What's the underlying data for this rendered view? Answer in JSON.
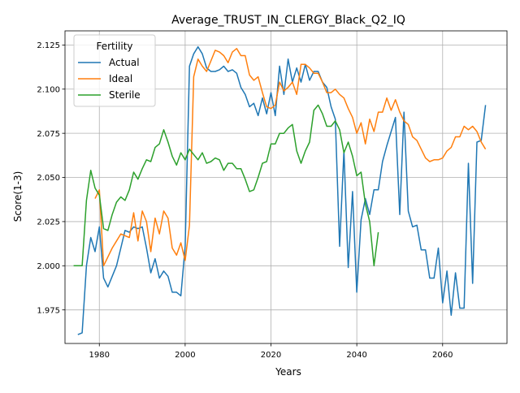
{
  "chart_data": {
    "type": "line",
    "title": "Average_TRUST_IN_CLERGY_Black_Q2_IQ",
    "xlabel": "Years",
    "ylabel": "Score(1-3)",
    "xlim": [
      1972,
      2075
    ],
    "ylim": [
      1.956,
      2.133
    ],
    "xticks": [
      1980,
      2000,
      2020,
      2040,
      2060
    ],
    "yticks": [
      1.975,
      2.0,
      2.025,
      2.05,
      2.075,
      2.1,
      2.125
    ],
    "grid": true,
    "legend": {
      "title": "Fertility",
      "placement": "upper-left"
    },
    "series": [
      {
        "name": "Actual",
        "color": "#1f77b4",
        "x": [
          1975,
          1976,
          1977,
          1978,
          1979,
          1980,
          1981,
          1982,
          1983,
          1984,
          1985,
          1986,
          1987,
          1988,
          1989,
          1990,
          1991,
          1992,
          1993,
          1994,
          1995,
          1996,
          1997,
          1998,
          1999,
          2000,
          2001,
          2002,
          2003,
          2004,
          2005,
          2006,
          2007,
          2008,
          2009,
          2010,
          2011,
          2012,
          2013,
          2014,
          2015,
          2016,
          2017,
          2018,
          2019,
          2020,
          2021,
          2022,
          2023,
          2024,
          2025,
          2026,
          2027,
          2028,
          2029,
          2030,
          2031,
          2032,
          2033,
          2034,
          2035,
          2036,
          2037,
          2038,
          2039,
          2040,
          2041,
          2042,
          2043,
          2044,
          2045,
          2046,
          2047,
          2048,
          2049,
          2050,
          2051,
          2052,
          2053,
          2054,
          2055,
          2056,
          2057,
          2058,
          2059,
          2060,
          2061,
          2062,
          2063,
          2064,
          2065,
          2066,
          2067,
          2068,
          2069,
          2070
        ],
        "y": [
          1.961,
          1.962,
          2.0,
          2.016,
          2.008,
          2.022,
          1.993,
          1.988,
          1.994,
          2.0,
          2.01,
          2.02,
          2.019,
          2.022,
          2.021,
          2.022,
          2.01,
          1.996,
          2.004,
          1.993,
          1.997,
          1.994,
          1.985,
          1.985,
          1.983,
          2.011,
          2.113,
          2.12,
          2.124,
          2.12,
          2.112,
          2.11,
          2.11,
          2.111,
          2.113,
          2.11,
          2.111,
          2.109,
          2.101,
          2.097,
          2.09,
          2.092,
          2.085,
          2.095,
          2.086,
          2.098,
          2.085,
          2.113,
          2.097,
          2.117,
          2.104,
          2.112,
          2.104,
          2.114,
          2.105,
          2.11,
          2.11,
          2.104,
          2.101,
          2.09,
          2.083,
          2.011,
          2.065,
          1.999,
          2.042,
          1.985,
          2.026,
          2.038,
          2.029,
          2.043,
          2.043,
          2.059,
          2.068,
          2.076,
          2.084,
          2.029,
          2.087,
          2.031,
          2.022,
          2.023,
          2.009,
          2.009,
          1.993,
          1.993,
          2.01,
          1.979,
          1.997,
          1.972,
          1.996,
          1.976,
          1.976,
          2.058,
          1.99,
          2.07,
          2.071,
          2.091
        ]
      },
      {
        "name": "Ideal",
        "color": "#ff7f0e",
        "x": [
          1979,
          1980,
          1981,
          1982,
          1983,
          1984,
          1985,
          1986,
          1987,
          1988,
          1989,
          1990,
          1991,
          1992,
          1993,
          1994,
          1995,
          1996,
          1997,
          1998,
          1999,
          2000,
          2001,
          2002,
          2003,
          2004,
          2005,
          2006,
          2007,
          2008,
          2009,
          2010,
          2011,
          2012,
          2013,
          2014,
          2015,
          2016,
          2017,
          2018,
          2019,
          2020,
          2021,
          2022,
          2023,
          2024,
          2025,
          2026,
          2027,
          2028,
          2029,
          2030,
          2031,
          2032,
          2033,
          2034,
          2035,
          2036,
          2037,
          2038,
          2039,
          2040,
          2041,
          2042,
          2043,
          2044,
          2045,
          2046,
          2047,
          2048,
          2049,
          2050,
          2051,
          2052,
          2053,
          2054,
          2055,
          2056,
          2057,
          2058,
          2059,
          2060,
          2061,
          2062,
          2063,
          2064,
          2065,
          2066,
          2067,
          2068,
          2069,
          2070
        ],
        "y": [
          2.038,
          2.043,
          2.0,
          2.005,
          2.01,
          2.014,
          2.018,
          2.017,
          2.016,
          2.03,
          2.014,
          2.031,
          2.025,
          2.008,
          2.027,
          2.018,
          2.031,
          2.027,
          2.01,
          2.006,
          2.013,
          2.003,
          2.023,
          2.107,
          2.117,
          2.113,
          2.11,
          2.116,
          2.122,
          2.121,
          2.119,
          2.115,
          2.121,
          2.123,
          2.119,
          2.119,
          2.108,
          2.105,
          2.107,
          2.098,
          2.09,
          2.089,
          2.091,
          2.104,
          2.099,
          2.101,
          2.104,
          2.097,
          2.114,
          2.114,
          2.112,
          2.109,
          2.109,
          2.104,
          2.098,
          2.098,
          2.1,
          2.097,
          2.095,
          2.089,
          2.084,
          2.075,
          2.081,
          2.069,
          2.083,
          2.076,
          2.087,
          2.087,
          2.095,
          2.088,
          2.094,
          2.087,
          2.082,
          2.08,
          2.073,
          2.071,
          2.066,
          2.061,
          2.059,
          2.06,
          2.06,
          2.061,
          2.065,
          2.067,
          2.073,
          2.073,
          2.079,
          2.077,
          2.079,
          2.076,
          2.07,
          2.066
        ]
      },
      {
        "name": "Sterile",
        "color": "#2ca02c",
        "x": [
          1974,
          1975,
          1976,
          1977,
          1978,
          1979,
          1980,
          1981,
          1982,
          1983,
          1984,
          1985,
          1986,
          1987,
          1988,
          1989,
          1990,
          1991,
          1992,
          1993,
          1994,
          1995,
          1996,
          1997,
          1998,
          1999,
          2000,
          2001,
          2002,
          2003,
          2004,
          2005,
          2006,
          2007,
          2008,
          2009,
          2010,
          2011,
          2012,
          2013,
          2014,
          2015,
          2016,
          2017,
          2018,
          2019,
          2020,
          2021,
          2022,
          2023,
          2024,
          2025,
          2026,
          2027,
          2028,
          2029,
          2030,
          2031,
          2032,
          2033,
          2034,
          2035,
          2036,
          2037,
          2038,
          2039,
          2040,
          2041,
          2042,
          2043,
          2044,
          2045
        ],
        "y": [
          2.0,
          2.0,
          2.0,
          2.037,
          2.054,
          2.044,
          2.04,
          2.021,
          2.02,
          2.029,
          2.036,
          2.039,
          2.037,
          2.043,
          2.053,
          2.049,
          2.055,
          2.06,
          2.059,
          2.067,
          2.069,
          2.077,
          2.07,
          2.062,
          2.057,
          2.064,
          2.06,
          2.066,
          2.063,
          2.06,
          2.064,
          2.058,
          2.059,
          2.061,
          2.06,
          2.054,
          2.058,
          2.058,
          2.055,
          2.055,
          2.049,
          2.042,
          2.043,
          2.05,
          2.058,
          2.059,
          2.069,
          2.069,
          2.075,
          2.075,
          2.078,
          2.08,
          2.065,
          2.058,
          2.065,
          2.07,
          2.088,
          2.091,
          2.086,
          2.079,
          2.079,
          2.082,
          2.077,
          2.064,
          2.07,
          2.062,
          2.051,
          2.053,
          2.035,
          2.025,
          2.0,
          2.019
        ]
      }
    ]
  }
}
